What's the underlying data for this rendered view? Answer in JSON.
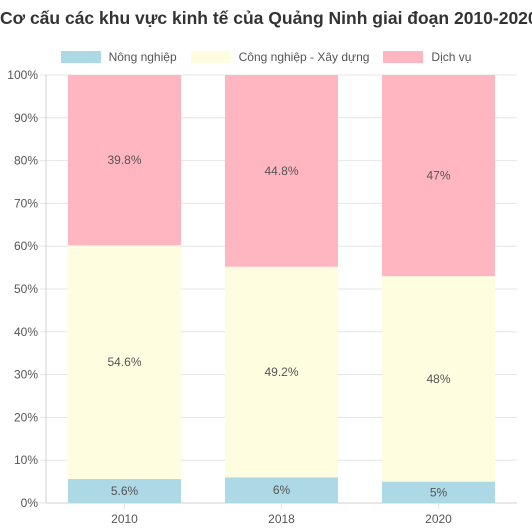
{
  "chart_data": {
    "type": "bar",
    "stacked": true,
    "title": "Cơ cấu các khu vực kinh tế của Quảng Ninh giai đoạn 2010-2020",
    "categories": [
      "2010",
      "2018",
      "2020"
    ],
    "series": [
      {
        "name": "Nông nghiệp",
        "values": [
          5.6,
          6,
          5
        ],
        "labels": [
          "5.6%",
          "6%",
          "5%"
        ],
        "color": "#ADD8E6"
      },
      {
        "name": "Công nghiệp - Xây dựng",
        "values": [
          54.6,
          49.2,
          48
        ],
        "labels": [
          "54.6%",
          "49.2%",
          "48%"
        ],
        "color": "#FFFDE0"
      },
      {
        "name": "Dịch vụ",
        "values": [
          39.8,
          44.8,
          47
        ],
        "labels": [
          "39.8%",
          "44.8%",
          "47%"
        ],
        "color": "#FFB6C1"
      }
    ],
    "ylim": [
      0,
      100
    ],
    "yticks": [
      "0%",
      "10%",
      "20%",
      "30%",
      "40%",
      "50%",
      "60%",
      "70%",
      "80%",
      "90%",
      "100%"
    ],
    "grid": true,
    "legend_position": "top"
  }
}
